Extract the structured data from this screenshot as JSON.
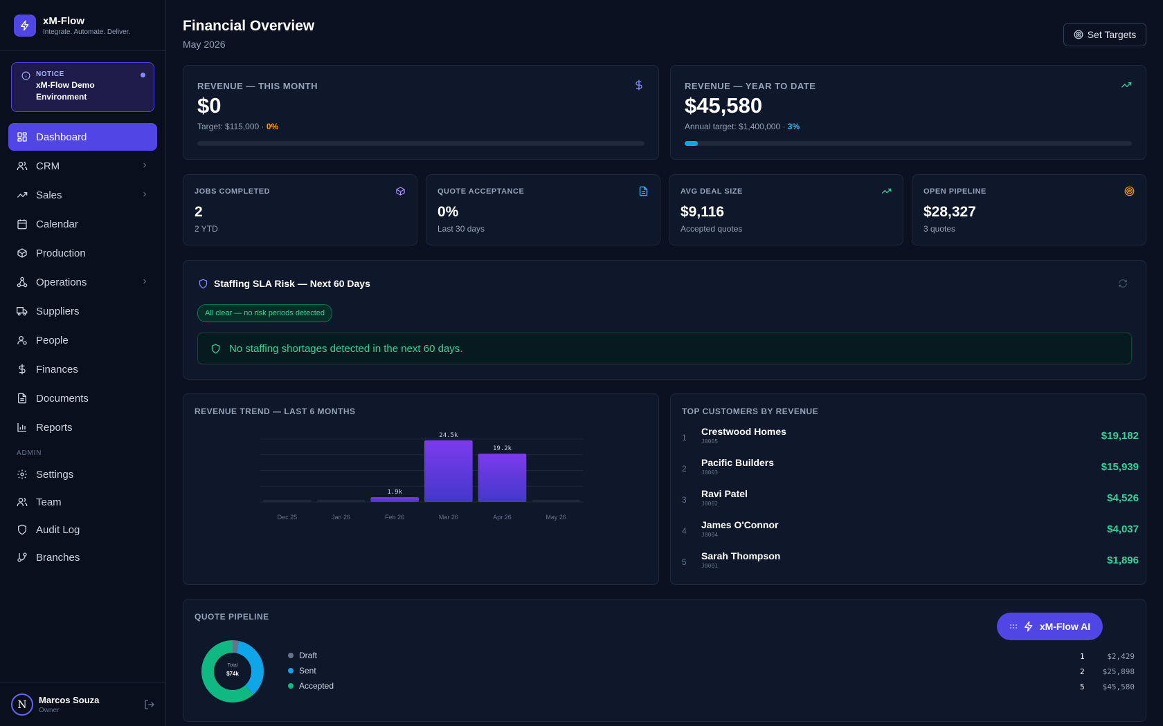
{
  "brand": {
    "name": "xM-Flow",
    "tagline": "Integrate. Automate. Deliver."
  },
  "notice": {
    "label": "NOTICE",
    "text": "xM-Flow Demo Environment"
  },
  "nav": {
    "items": [
      {
        "label": "Dashboard",
        "icon": "dashboard-icon",
        "active": true
      },
      {
        "label": "CRM",
        "icon": "users-icon",
        "chevron": true
      },
      {
        "label": "Sales",
        "icon": "trending-up-icon",
        "chevron": true
      },
      {
        "label": "Calendar",
        "icon": "calendar-icon"
      },
      {
        "label": "Production",
        "icon": "box-icon"
      },
      {
        "label": "Operations",
        "icon": "workflow-icon",
        "chevron": true
      },
      {
        "label": "Suppliers",
        "icon": "truck-icon"
      },
      {
        "label": "People",
        "icon": "person-icon"
      },
      {
        "label": "Finances",
        "icon": "dollar-icon"
      },
      {
        "label": "Documents",
        "icon": "document-icon"
      },
      {
        "label": "Reports",
        "icon": "bar-chart-icon"
      }
    ],
    "admin_label": "ADMIN",
    "admin_items": [
      {
        "label": "Settings",
        "icon": "gear-icon"
      },
      {
        "label": "Team",
        "icon": "users-icon"
      },
      {
        "label": "Audit Log",
        "icon": "shield-icon"
      },
      {
        "label": "Branches",
        "icon": "git-branch-icon"
      }
    ]
  },
  "user": {
    "initial": "N",
    "name": "Marcos Souza",
    "role": "Owner"
  },
  "header": {
    "title": "Financial Overview",
    "subtitle": "May 2026",
    "targets_button": "Set Targets"
  },
  "revenue_month": {
    "label": "REVENUE — THIS MONTH",
    "value": "$0",
    "target": "Target: $115,000 · ",
    "pct": "0%",
    "progress": 0
  },
  "revenue_ytd": {
    "label": "REVENUE — YEAR TO DATE",
    "value": "$45,580",
    "target": "Annual target: $1,400,000 · ",
    "pct": "3%",
    "progress": 0.03
  },
  "kpis": [
    {
      "label": "JOBS COMPLETED",
      "value": "2",
      "sub": "2 YTD",
      "icon": "box-icon",
      "color": "#a78bfa"
    },
    {
      "label": "QUOTE ACCEPTANCE",
      "value": "0%",
      "sub": "Last 30 days",
      "icon": "document-icon",
      "color": "#38bdf8"
    },
    {
      "label": "AVG DEAL SIZE",
      "value": "$9,116",
      "sub": "Accepted quotes",
      "icon": "trending-up-icon",
      "color": "#34d399"
    },
    {
      "label": "OPEN PIPELINE",
      "value": "$28,327",
      "sub": "3 quotes",
      "icon": "target-icon",
      "color": "#f59e0b"
    }
  ],
  "sla": {
    "title": "Staffing SLA Risk — Next 60 Days",
    "badge": "All clear — no risk periods detected",
    "message": "No staffing shortages detected in the next 60 days."
  },
  "revenue_trend": {
    "title": "REVENUE TREND — LAST 6 MONTHS"
  },
  "chart_data": {
    "type": "bar",
    "categories": [
      "Dec 25",
      "Jan 26",
      "Feb 26",
      "Mar 26",
      "Apr 26",
      "May 26"
    ],
    "values": [
      0,
      0,
      1900,
      24500,
      19200,
      0
    ],
    "labels": [
      "",
      "",
      "1.9k",
      "24.5k",
      "19.2k",
      ""
    ],
    "ylim": [
      0,
      25000
    ],
    "grid": true
  },
  "top_customers": {
    "title": "TOP CUSTOMERS BY REVENUE",
    "rows": [
      {
        "rank": "1",
        "name": "Crestwood Homes",
        "id": "J0005",
        "value": "$19,182"
      },
      {
        "rank": "2",
        "name": "Pacific Builders",
        "id": "J0003",
        "value": "$15,939"
      },
      {
        "rank": "3",
        "name": "Ravi Patel",
        "id": "J0002",
        "value": "$4,526"
      },
      {
        "rank": "4",
        "name": "James O'Connor",
        "id": "J0004",
        "value": "$4,037"
      },
      {
        "rank": "5",
        "name": "Sarah Thompson",
        "id": "J0001",
        "value": "$1,896"
      }
    ]
  },
  "quote_pipeline": {
    "title": "QUOTE PIPELINE",
    "total_label": "Total",
    "total_value": "$74k",
    "rows": [
      {
        "label": "Draft",
        "count": "1",
        "value": "$2,429",
        "amount": 2429,
        "color": "#64748b"
      },
      {
        "label": "Sent",
        "count": "2",
        "value": "$25,898",
        "amount": 25898,
        "color": "#0ea5e9"
      },
      {
        "label": "Accepted",
        "count": "5",
        "value": "$45,580",
        "amount": 45580,
        "color": "#10b981"
      }
    ]
  },
  "ai_button": {
    "label": "xM-Flow AI"
  }
}
